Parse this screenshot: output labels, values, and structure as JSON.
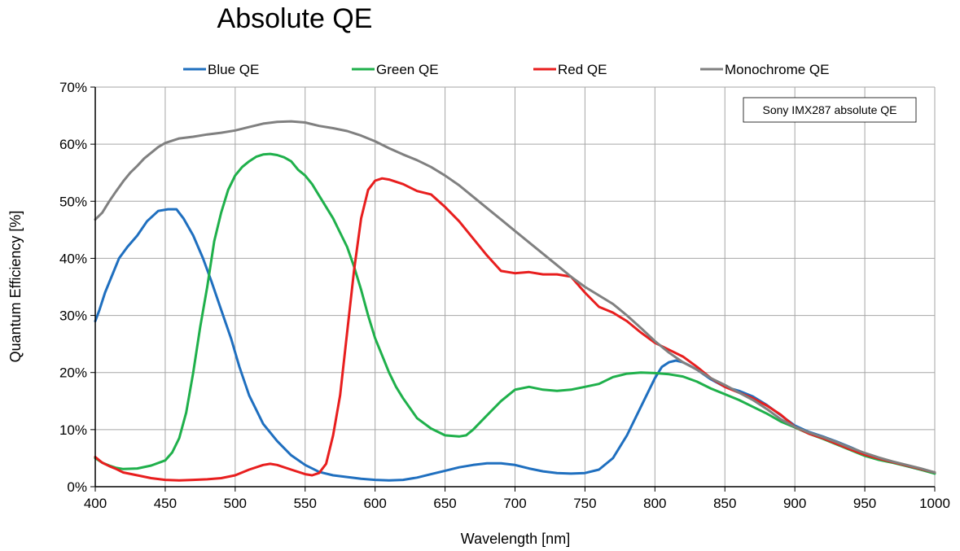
{
  "chart_data": {
    "type": "line",
    "title": "Absolute QE",
    "xlabel": "Wavelength [nm]",
    "ylabel": "Quantum Efficiency [%]",
    "xlim": [
      400,
      1000
    ],
    "ylim": [
      0,
      70
    ],
    "x_ticks": [
      400,
      450,
      500,
      550,
      600,
      650,
      700,
      750,
      800,
      850,
      900,
      950,
      1000
    ],
    "x_tick_labels": [
      "400",
      "450",
      "500",
      "550",
      "600",
      "650",
      "700",
      "750",
      "800",
      "850",
      "900",
      "950",
      "1000"
    ],
    "y_ticks": [
      0,
      10,
      20,
      30,
      40,
      50,
      60,
      70
    ],
    "y_tick_labels": [
      "0%",
      "10%",
      "20%",
      "30%",
      "40%",
      "50%",
      "60%",
      "70%"
    ],
    "grid": true,
    "legend_position": "top",
    "annotation": "Sony IMX287 absolute QE",
    "series": [
      {
        "name": "Blue QE",
        "color": "#1f6fbf",
        "points": [
          [
            400,
            29
          ],
          [
            403,
            31
          ],
          [
            407,
            34
          ],
          [
            412,
            37
          ],
          [
            417,
            40
          ],
          [
            423,
            42
          ],
          [
            430,
            44
          ],
          [
            437,
            46.5
          ],
          [
            445,
            48.3
          ],
          [
            452,
            48.6
          ],
          [
            458,
            48.6
          ],
          [
            463,
            47
          ],
          [
            470,
            44
          ],
          [
            477,
            40
          ],
          [
            483,
            36
          ],
          [
            490,
            31
          ],
          [
            497,
            26
          ],
          [
            503,
            21
          ],
          [
            510,
            16
          ],
          [
            520,
            11
          ],
          [
            530,
            8
          ],
          [
            540,
            5.5
          ],
          [
            550,
            3.8
          ],
          [
            560,
            2.6
          ],
          [
            570,
            2
          ],
          [
            580,
            1.7
          ],
          [
            590,
            1.4
          ],
          [
            600,
            1.2
          ],
          [
            610,
            1.1
          ],
          [
            620,
            1.2
          ],
          [
            630,
            1.6
          ],
          [
            640,
            2.2
          ],
          [
            650,
            2.8
          ],
          [
            660,
            3.4
          ],
          [
            670,
            3.8
          ],
          [
            680,
            4.1
          ],
          [
            690,
            4.1
          ],
          [
            700,
            3.8
          ],
          [
            710,
            3.2
          ],
          [
            720,
            2.7
          ],
          [
            730,
            2.4
          ],
          [
            740,
            2.3
          ],
          [
            750,
            2.4
          ],
          [
            760,
            3
          ],
          [
            770,
            5
          ],
          [
            780,
            9
          ],
          [
            790,
            14
          ],
          [
            800,
            19
          ],
          [
            805,
            21
          ],
          [
            810,
            21.8
          ],
          [
            815,
            22.1
          ],
          [
            820,
            21.8
          ],
          [
            825,
            21.2
          ],
          [
            830,
            20.5
          ],
          [
            840,
            18.8
          ],
          [
            850,
            17.5
          ],
          [
            860,
            16.8
          ],
          [
            870,
            15.8
          ],
          [
            880,
            14.3
          ],
          [
            890,
            12.5
          ],
          [
            900,
            10.7
          ],
          [
            910,
            9.6
          ],
          [
            920,
            8.8
          ],
          [
            930,
            7.9
          ],
          [
            940,
            6.9
          ],
          [
            950,
            5.8
          ],
          [
            960,
            4.9
          ],
          [
            970,
            4.3
          ],
          [
            980,
            3.6
          ],
          [
            990,
            3
          ],
          [
            1000,
            2.4
          ]
        ]
      },
      {
        "name": "Green QE",
        "color": "#1fb04b",
        "points": [
          [
            400,
            5
          ],
          [
            405,
            4.2
          ],
          [
            410,
            3.7
          ],
          [
            415,
            3.3
          ],
          [
            420,
            3.1
          ],
          [
            430,
            3.2
          ],
          [
            440,
            3.7
          ],
          [
            450,
            4.6
          ],
          [
            455,
            6
          ],
          [
            460,
            8.5
          ],
          [
            465,
            13
          ],
          [
            470,
            20
          ],
          [
            475,
            28
          ],
          [
            480,
            35
          ],
          [
            485,
            43
          ],
          [
            490,
            48
          ],
          [
            495,
            52
          ],
          [
            500,
            54.5
          ],
          [
            505,
            56
          ],
          [
            510,
            57
          ],
          [
            515,
            57.8
          ],
          [
            520,
            58.2
          ],
          [
            525,
            58.3
          ],
          [
            530,
            58.1
          ],
          [
            535,
            57.7
          ],
          [
            540,
            57
          ],
          [
            545,
            55.5
          ],
          [
            550,
            54.5
          ],
          [
            555,
            53
          ],
          [
            560,
            51
          ],
          [
            565,
            49
          ],
          [
            570,
            47
          ],
          [
            575,
            44.5
          ],
          [
            580,
            42
          ],
          [
            585,
            38.5
          ],
          [
            590,
            34.5
          ],
          [
            595,
            30
          ],
          [
            600,
            26
          ],
          [
            605,
            23
          ],
          [
            610,
            20
          ],
          [
            615,
            17.5
          ],
          [
            620,
            15.5
          ],
          [
            630,
            12
          ],
          [
            640,
            10.2
          ],
          [
            650,
            9
          ],
          [
            660,
            8.8
          ],
          [
            665,
            9
          ],
          [
            670,
            10
          ],
          [
            680,
            12.5
          ],
          [
            690,
            15
          ],
          [
            700,
            17
          ],
          [
            710,
            17.5
          ],
          [
            720,
            17
          ],
          [
            730,
            16.8
          ],
          [
            740,
            17
          ],
          [
            750,
            17.5
          ],
          [
            760,
            18
          ],
          [
            770,
            19.2
          ],
          [
            780,
            19.8
          ],
          [
            790,
            20
          ],
          [
            800,
            19.9
          ],
          [
            810,
            19.7
          ],
          [
            820,
            19.3
          ],
          [
            830,
            18.4
          ],
          [
            840,
            17.2
          ],
          [
            850,
            16.2
          ],
          [
            860,
            15.2
          ],
          [
            870,
            14
          ],
          [
            880,
            12.8
          ],
          [
            890,
            11.4
          ],
          [
            900,
            10.4
          ],
          [
            910,
            9.3
          ],
          [
            920,
            8.4
          ],
          [
            930,
            7.4
          ],
          [
            940,
            6.4
          ],
          [
            950,
            5.4
          ],
          [
            960,
            4.7
          ],
          [
            970,
            4.2
          ],
          [
            980,
            3.6
          ],
          [
            990,
            3
          ],
          [
            1000,
            2.3
          ]
        ]
      },
      {
        "name": "Red QE",
        "color": "#e81e1e",
        "points": [
          [
            400,
            5.2
          ],
          [
            405,
            4.2
          ],
          [
            410,
            3.6
          ],
          [
            415,
            3.1
          ],
          [
            420,
            2.5
          ],
          [
            430,
            2
          ],
          [
            440,
            1.5
          ],
          [
            450,
            1.2
          ],
          [
            460,
            1.1
          ],
          [
            470,
            1.2
          ],
          [
            480,
            1.3
          ],
          [
            490,
            1.5
          ],
          [
            500,
            2
          ],
          [
            510,
            3
          ],
          [
            520,
            3.8
          ],
          [
            525,
            4
          ],
          [
            530,
            3.8
          ],
          [
            540,
            3
          ],
          [
            550,
            2.2
          ],
          [
            555,
            2
          ],
          [
            560,
            2.4
          ],
          [
            565,
            4
          ],
          [
            570,
            9
          ],
          [
            575,
            16
          ],
          [
            580,
            27
          ],
          [
            585,
            38
          ],
          [
            590,
            47
          ],
          [
            595,
            52
          ],
          [
            600,
            53.6
          ],
          [
            605,
            54
          ],
          [
            610,
            53.8
          ],
          [
            620,
            53
          ],
          [
            630,
            51.8
          ],
          [
            640,
            51.2
          ],
          [
            650,
            49
          ],
          [
            660,
            46.5
          ],
          [
            670,
            43.5
          ],
          [
            680,
            40.5
          ],
          [
            690,
            37.8
          ],
          [
            700,
            37.4
          ],
          [
            710,
            37.6
          ],
          [
            720,
            37.2
          ],
          [
            730,
            37.2
          ],
          [
            740,
            36.8
          ],
          [
            750,
            34
          ],
          [
            760,
            31.5
          ],
          [
            770,
            30.5
          ],
          [
            780,
            29
          ],
          [
            790,
            27
          ],
          [
            800,
            25.2
          ],
          [
            810,
            24
          ],
          [
            820,
            22.8
          ],
          [
            830,
            21
          ],
          [
            840,
            19
          ],
          [
            850,
            17.5
          ],
          [
            860,
            16.5
          ],
          [
            870,
            15.5
          ],
          [
            880,
            14.2
          ],
          [
            890,
            12.6
          ],
          [
            900,
            10.5
          ],
          [
            910,
            9.3
          ],
          [
            920,
            8.5
          ],
          [
            930,
            7.5
          ],
          [
            940,
            6.5
          ],
          [
            950,
            5.6
          ],
          [
            960,
            4.9
          ],
          [
            970,
            4.3
          ],
          [
            980,
            3.7
          ],
          [
            990,
            3.1
          ],
          [
            1000,
            2.5
          ]
        ]
      },
      {
        "name": "Monochrome QE",
        "color": "#808080",
        "points": [
          [
            400,
            46.8
          ],
          [
            405,
            48
          ],
          [
            410,
            50
          ],
          [
            415,
            51.8
          ],
          [
            420,
            53.5
          ],
          [
            425,
            55
          ],
          [
            430,
            56.2
          ],
          [
            435,
            57.5
          ],
          [
            440,
            58.5
          ],
          [
            445,
            59.5
          ],
          [
            450,
            60.2
          ],
          [
            460,
            61
          ],
          [
            470,
            61.3
          ],
          [
            480,
            61.7
          ],
          [
            490,
            62
          ],
          [
            500,
            62.4
          ],
          [
            510,
            63
          ],
          [
            520,
            63.6
          ],
          [
            530,
            63.9
          ],
          [
            540,
            64
          ],
          [
            550,
            63.8
          ],
          [
            560,
            63.2
          ],
          [
            570,
            62.8
          ],
          [
            580,
            62.3
          ],
          [
            590,
            61.5
          ],
          [
            600,
            60.5
          ],
          [
            610,
            59.3
          ],
          [
            620,
            58.2
          ],
          [
            630,
            57.2
          ],
          [
            640,
            56
          ],
          [
            650,
            54.5
          ],
          [
            660,
            52.8
          ],
          [
            670,
            50.8
          ],
          [
            680,
            48.8
          ],
          [
            690,
            46.8
          ],
          [
            700,
            44.8
          ],
          [
            710,
            42.8
          ],
          [
            720,
            40.8
          ],
          [
            730,
            38.8
          ],
          [
            740,
            36.8
          ],
          [
            750,
            35
          ],
          [
            760,
            33.5
          ],
          [
            770,
            32
          ],
          [
            780,
            30
          ],
          [
            790,
            27.8
          ],
          [
            800,
            25.5
          ],
          [
            810,
            23.5
          ],
          [
            820,
            21.8
          ],
          [
            830,
            20.5
          ],
          [
            840,
            19
          ],
          [
            850,
            17.8
          ],
          [
            860,
            16.5
          ],
          [
            870,
            15.2
          ],
          [
            880,
            13.6
          ],
          [
            890,
            11.8
          ],
          [
            900,
            10.5
          ],
          [
            910,
            9.5
          ],
          [
            920,
            8.7
          ],
          [
            930,
            7.8
          ],
          [
            940,
            6.8
          ],
          [
            950,
            5.9
          ],
          [
            960,
            5.1
          ],
          [
            970,
            4.4
          ],
          [
            980,
            3.8
          ],
          [
            990,
            3.2
          ],
          [
            1000,
            2.5
          ]
        ]
      }
    ]
  }
}
